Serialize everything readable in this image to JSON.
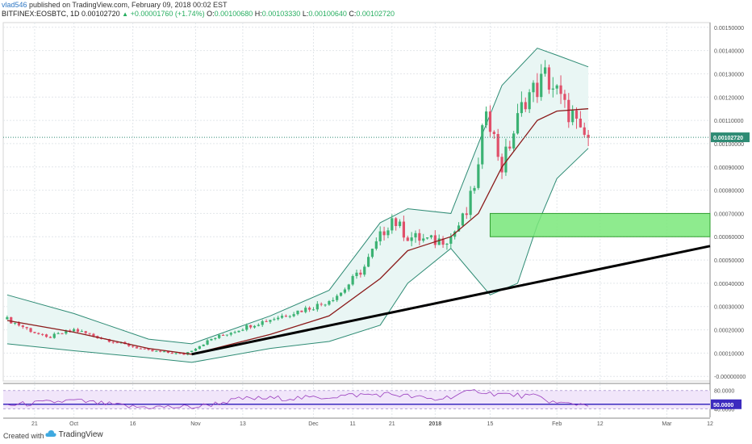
{
  "header": {
    "author": "vlad546",
    "published": " published on TradingView.com, February 09, 2018 00:02 EST",
    "symbol": "BITFINEX:EOSBTC, 1D",
    "price": "0.00102720",
    "change": "+0.00001760 (+1.74%)",
    "o_label": "O:",
    "o_value": "0.00100680",
    "h_label": "H:",
    "h_value": "0.00103330",
    "l_label": "L:",
    "l_value": "0.00100640",
    "c_label": "C:",
    "c_value": "0.00102720"
  },
  "footer": {
    "created": "Created with",
    "brand": "TradingView"
  },
  "colors": {
    "up": "#3bb273",
    "down": "#e0506a",
    "bb": "#2e8b74",
    "bbFill": "#e9f6f4",
    "ma": "#8b1a1a",
    "trend": "#000000",
    "zone": "#7ae87a",
    "rsi": "#9b3fbf",
    "rsiLevel": "#3c2bbf"
  },
  "chart_data": [
    {
      "type": "candlestick",
      "title": "BITFINEX:EOSBTC, 1D",
      "price_axis_ticks": [
        "0.00150000",
        "0.00140000",
        "0.00130000",
        "0.00120000",
        "0.00110000",
        "0.00100000",
        "0.00090000",
        "0.00080000",
        "0.00070000",
        "0.00060000",
        "0.00050000",
        "0.00040000",
        "0.00030000",
        "0.00020000",
        "0.00010000",
        "-0.00000000"
      ],
      "last_price_label": "0.00102720",
      "date_axis_ticks": [
        "21",
        "Oct",
        "16",
        "Nov",
        "13",
        "Dec",
        "11",
        "21",
        "2018",
        "15",
        "Feb",
        "12",
        "Mar",
        "12"
      ],
      "date_tick_positions": [
        "2017-09-21",
        "2017-10-01",
        "2017-10-16",
        "2017-11-01",
        "2017-11-13",
        "2017-12-01",
        "2017-12-11",
        "2017-12-21",
        "2018-01-01",
        "2018-01-15",
        "2018-02-01",
        "2018-02-12",
        "2018-03-01",
        "2018-03-12"
      ],
      "ylim": [
        -2e-05,
        0.00152
      ],
      "x_range": [
        "2017-09-13",
        "2018-03-12"
      ],
      "candles_daily": [
        [
          "2017-09-14",
          0.000245
        ],
        [
          "2017-09-24",
          0.000165
        ],
        [
          "2017-10-01",
          0.0002
        ],
        [
          "2017-10-10",
          0.000155
        ],
        [
          "2017-10-20",
          0.00011
        ],
        [
          "2017-10-29",
          9.5e-05
        ],
        [
          "2017-11-05",
          0.00016
        ],
        [
          "2017-11-15",
          0.00022
        ],
        [
          "2017-11-25",
          0.00027
        ],
        [
          "2017-12-03",
          0.00031
        ],
        [
          "2017-12-08",
          0.00036
        ],
        [
          "2017-12-14",
          0.00047
        ],
        [
          "2017-12-18",
          0.0006
        ],
        [
          "2017-12-21",
          0.00068
        ],
        [
          "2017-12-25",
          0.0006
        ],
        [
          "2018-01-01",
          0.00058
        ],
        [
          "2018-01-05",
          0.0006
        ],
        [
          "2018-01-09",
          0.0007
        ],
        [
          "2018-01-12",
          0.00089
        ],
        [
          "2018-01-14",
          0.00118
        ],
        [
          "2018-01-16",
          0.00102
        ],
        [
          "2018-01-18",
          0.0009
        ],
        [
          "2018-01-21",
          0.00105
        ],
        [
          "2018-01-24",
          0.0012
        ],
        [
          "2018-01-27",
          0.00124
        ],
        [
          "2018-01-29",
          0.00129
        ],
        [
          "2018-02-01",
          0.00122
        ],
        [
          "2018-02-03",
          0.00115
        ],
        [
          "2018-02-05",
          0.00112
        ],
        [
          "2018-02-07",
          0.00103
        ],
        [
          "2018-02-09",
          0.0010272
        ]
      ],
      "bollinger_upper": [
        [
          "2017-09-14",
          0.00035
        ],
        [
          "2017-10-01",
          0.00027
        ],
        [
          "2017-10-20",
          0.00016
        ],
        [
          "2017-10-31",
          0.00014
        ],
        [
          "2017-11-20",
          0.00026
        ],
        [
          "2017-12-05",
          0.00037
        ],
        [
          "2017-12-18",
          0.00066
        ],
        [
          "2017-12-25",
          0.00072
        ],
        [
          "2018-01-05",
          0.0007
        ],
        [
          "2018-01-12",
          0.001
        ],
        [
          "2018-01-18",
          0.00125
        ],
        [
          "2018-01-27",
          0.00141
        ],
        [
          "2018-02-01",
          0.00138
        ],
        [
          "2018-02-09",
          0.00133
        ]
      ],
      "bollinger_lower": [
        [
          "2017-09-14",
          0.00014
        ],
        [
          "2017-10-01",
          0.00011
        ],
        [
          "2017-10-20",
          8e-05
        ],
        [
          "2017-10-31",
          6e-05
        ],
        [
          "2017-11-20",
          0.00012
        ],
        [
          "2017-12-05",
          0.00015
        ],
        [
          "2017-12-18",
          0.00022
        ],
        [
          "2017-12-25",
          0.0004
        ],
        [
          "2018-01-05",
          0.00055
        ],
        [
          "2018-01-10",
          0.00045
        ],
        [
          "2018-01-15",
          0.00035
        ],
        [
          "2018-01-22",
          0.0004
        ],
        [
          "2018-01-27",
          0.00065
        ],
        [
          "2018-02-01",
          0.00085
        ],
        [
          "2018-02-09",
          0.00098
        ]
      ],
      "moving_average": [
        [
          "2017-09-14",
          0.00024
        ],
        [
          "2017-10-01",
          0.00019
        ],
        [
          "2017-10-20",
          0.00012
        ],
        [
          "2017-10-31",
          9.5e-05
        ],
        [
          "2017-11-20",
          0.00018
        ],
        [
          "2017-12-05",
          0.00026
        ],
        [
          "2017-12-18",
          0.00042
        ],
        [
          "2017-12-25",
          0.00054
        ],
        [
          "2018-01-05",
          0.0006
        ],
        [
          "2018-01-12",
          0.0007
        ],
        [
          "2018-01-18",
          0.0009
        ],
        [
          "2018-01-27",
          0.0011
        ],
        [
          "2018-02-01",
          0.00114
        ],
        [
          "2018-02-09",
          0.00115
        ]
      ],
      "trendline": [
        [
          "2017-10-31",
          9.5e-05
        ],
        [
          "2018-03-12",
          0.00056
        ]
      ],
      "support_zone": {
        "from": "2018-01-15",
        "to": "2018-03-12",
        "low": 0.0006,
        "high": 0.0007
      }
    },
    {
      "type": "line",
      "title": "RSI",
      "axis_ticks": [
        "80.0000",
        "40.0000"
      ],
      "level_label": "50.0000",
      "ylim": [
        25,
        90
      ],
      "values": [
        [
          "2017-09-14",
          48
        ],
        [
          "2017-10-01",
          58
        ],
        [
          "2017-10-16",
          44
        ],
        [
          "2017-11-01",
          44
        ],
        [
          "2017-11-13",
          62
        ],
        [
          "2017-12-01",
          64
        ],
        [
          "2017-12-11",
          70
        ],
        [
          "2017-12-21",
          72
        ],
        [
          "2018-01-01",
          60
        ],
        [
          "2018-01-12",
          80
        ],
        [
          "2018-01-15",
          74
        ],
        [
          "2018-01-27",
          66
        ],
        [
          "2018-02-01",
          52
        ],
        [
          "2018-02-09",
          50
        ]
      ]
    }
  ]
}
